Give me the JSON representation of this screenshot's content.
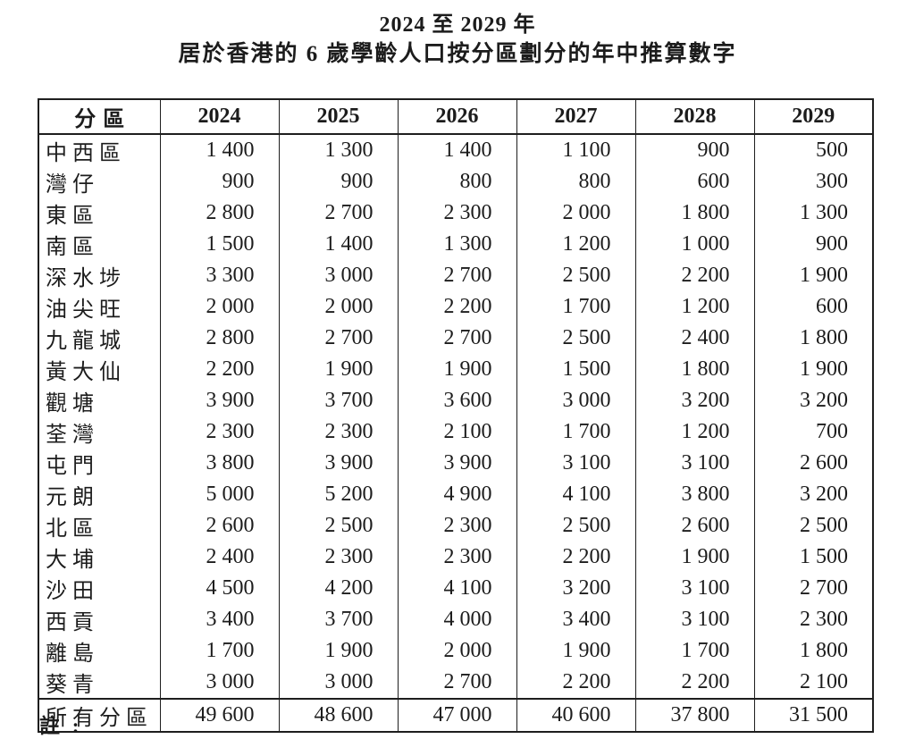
{
  "title": {
    "line1": "2024 至 2029 年",
    "line2": "居於香港的 6 歲學齡人口按分區劃分的年中推算數字"
  },
  "table": {
    "district_header": "分區",
    "year_headers": [
      "2024",
      "2025",
      "2026",
      "2027",
      "2028",
      "2029"
    ],
    "rows": [
      {
        "district": "中西區",
        "values": [
          "1 400",
          "1 300",
          "1 400",
          "1 100",
          "900",
          "500"
        ]
      },
      {
        "district": "灣仔",
        "values": [
          "900",
          "900",
          "800",
          "800",
          "600",
          "300"
        ]
      },
      {
        "district": "東區",
        "values": [
          "2 800",
          "2 700",
          "2 300",
          "2 000",
          "1 800",
          "1 300"
        ]
      },
      {
        "district": "南區",
        "values": [
          "1 500",
          "1 400",
          "1 300",
          "1 200",
          "1 000",
          "900"
        ]
      },
      {
        "district": "深水埗",
        "values": [
          "3 300",
          "3 000",
          "2 700",
          "2 500",
          "2 200",
          "1 900"
        ]
      },
      {
        "district": "油尖旺",
        "values": [
          "2 000",
          "2 000",
          "2 200",
          "1 700",
          "1 200",
          "600"
        ]
      },
      {
        "district": "九龍城",
        "values": [
          "2 800",
          "2 700",
          "2 700",
          "2 500",
          "2 400",
          "1 800"
        ]
      },
      {
        "district": "黃大仙",
        "values": [
          "2 200",
          "1 900",
          "1 900",
          "1 500",
          "1 800",
          "1 900"
        ]
      },
      {
        "district": "觀塘",
        "values": [
          "3 900",
          "3 700",
          "3 600",
          "3 000",
          "3 200",
          "3 200"
        ]
      },
      {
        "district": "荃灣",
        "values": [
          "2 300",
          "2 300",
          "2 100",
          "1 700",
          "1 200",
          "700"
        ]
      },
      {
        "district": "屯門",
        "values": [
          "3 800",
          "3 900",
          "3 900",
          "3 100",
          "3 100",
          "2 600"
        ]
      },
      {
        "district": "元朗",
        "values": [
          "5 000",
          "5 200",
          "4 900",
          "4 100",
          "3 800",
          "3 200"
        ]
      },
      {
        "district": "北區",
        "values": [
          "2 600",
          "2 500",
          "2 300",
          "2 500",
          "2 600",
          "2 500"
        ]
      },
      {
        "district": "大埔",
        "values": [
          "2 400",
          "2 300",
          "2 300",
          "2 200",
          "1 900",
          "1 500"
        ]
      },
      {
        "district": "沙田",
        "values": [
          "4 500",
          "4 200",
          "4 100",
          "3 200",
          "3 100",
          "2 700"
        ]
      },
      {
        "district": "西貢",
        "values": [
          "3 400",
          "3 700",
          "4 000",
          "3 400",
          "3 100",
          "2 300"
        ]
      },
      {
        "district": "離島",
        "values": [
          "1 700",
          "1 900",
          "2 000",
          "1 900",
          "1 700",
          "1 800"
        ]
      },
      {
        "district": "葵青",
        "values": [
          "3 000",
          "3 000",
          "2 700",
          "2 200",
          "2 200",
          "2 100"
        ]
      }
    ],
    "total_row": {
      "district": "所有分區",
      "values": [
        "49 600",
        "48 600",
        "47 000",
        "40 600",
        "37 800",
        "31 500"
      ]
    }
  },
  "footnote": {
    "label": "註 :"
  },
  "colors": {
    "background": "#ffffff",
    "text": "#1c1c1c",
    "border": "#1e1e1e"
  }
}
